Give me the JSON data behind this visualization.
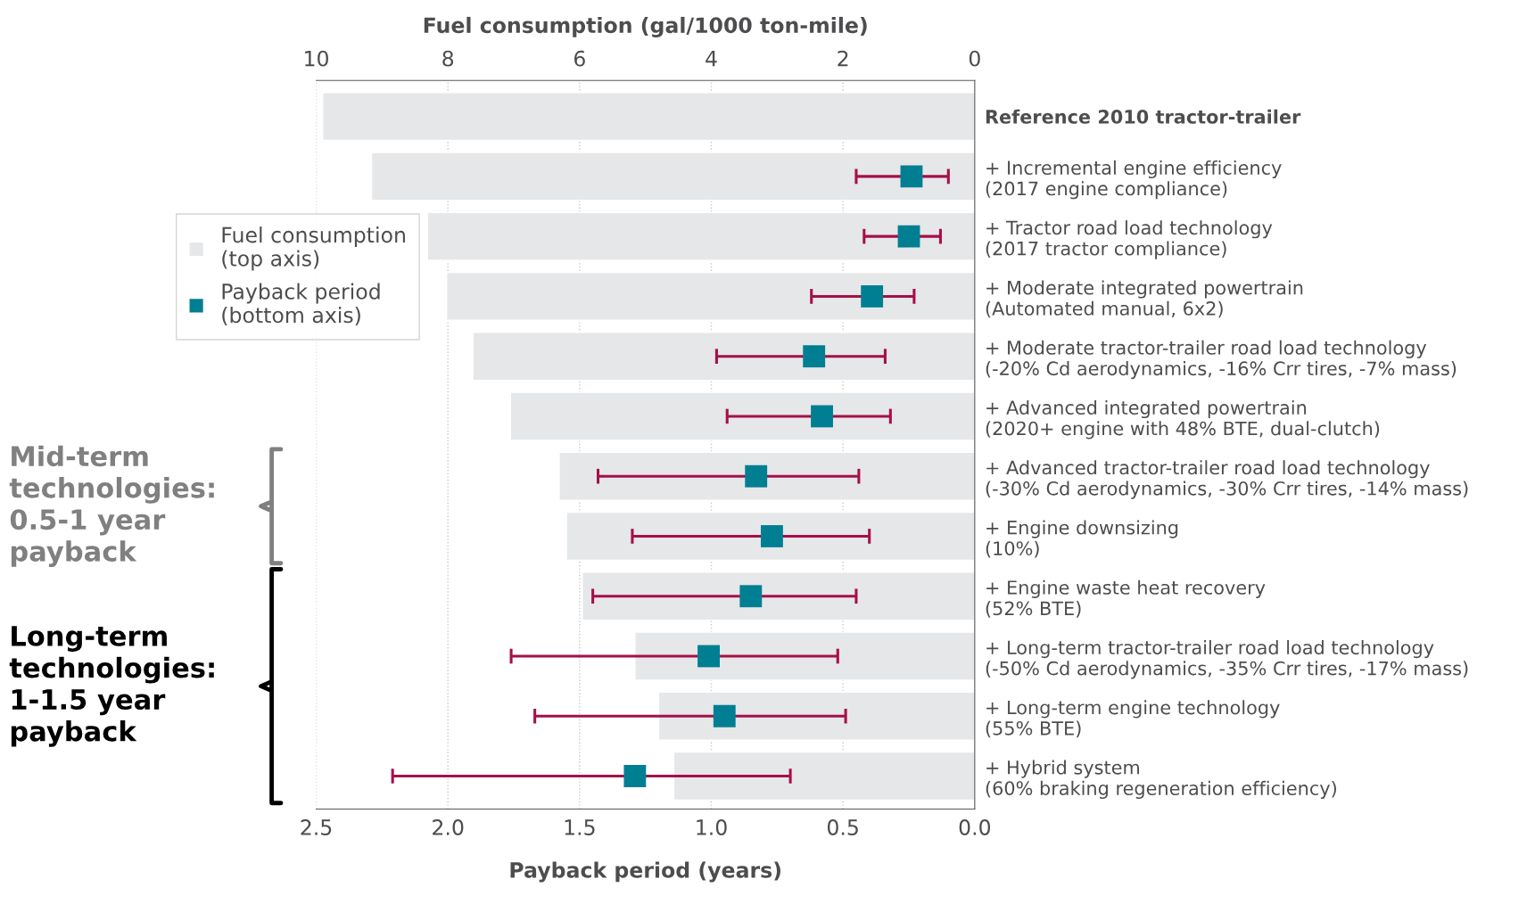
{
  "chart_data": {
    "type": "bar",
    "orientation": "horizontal",
    "xlabel": "Payback period (years)",
    "x2label": "Fuel consumption (gal/1000 ton-mile)",
    "categories": [
      "Reference 2010 tractor-trailer",
      "+ Incremental engine efficiency\n(2017 engine compliance)",
      "+ Tractor road load technology\n(2017 tractor compliance)",
      "+ Moderate integrated powertrain\n(Automated manual, 6x2)",
      "+ Moderate tractor-trailer road load technology\n(-20% Cd aerodynamics, -16% Crr tires, -7% mass)",
      "+ Advanced integrated powertrain\n(2020+ engine with 48% BTE, dual-clutch)",
      "+ Advanced tractor-trailer road load technology\n(-30% Cd aerodynamics, -30% Crr tires, -14% mass)",
      "+ Engine downsizing\n(10%)",
      "+ Engine waste heat recovery\n(52% BTE)",
      "+ Long-term tractor-trailer road load technology\n(-50% Cd aerodynamics, -35% Crr tires, -17% mass)",
      "+ Long-term engine technology\n(55% BTE)",
      "+ Hybrid system\n(60% braking regeneration efficiency)"
    ],
    "series": [
      {
        "name": "Fuel consumption\n(top axis)",
        "type": "bar",
        "axis": "x2",
        "color": "#e6e7e8",
        "values": [
          9.9,
          9.16,
          8.31,
          8.02,
          7.62,
          7.05,
          6.31,
          6.2,
          5.96,
          5.16,
          4.8,
          4.57
        ]
      },
      {
        "name": "Payback period\n(bottom axis)",
        "type": "scatter",
        "marker": "square",
        "color": "#007f92",
        "values": [
          null,
          0.24,
          0.25,
          0.39,
          0.61,
          0.58,
          0.83,
          0.77,
          0.85,
          1.01,
          0.95,
          1.29
        ],
        "errors": [
          null,
          [
            0.1,
            0.45
          ],
          [
            0.13,
            0.42
          ],
          [
            0.23,
            0.62
          ],
          [
            0.34,
            0.98
          ],
          [
            0.32,
            0.94
          ],
          [
            0.44,
            1.43
          ],
          [
            0.4,
            1.3
          ],
          [
            0.45,
            1.45
          ],
          [
            0.52,
            1.76
          ],
          [
            0.49,
            1.67
          ],
          [
            0.7,
            2.21
          ]
        ]
      }
    ],
    "xlim": [
      2.5,
      0
    ],
    "xticks": [
      {
        "value": 2.5,
        "label": "2.5"
      },
      {
        "value": 2.0,
        "label": "2.0"
      },
      {
        "value": 1.5,
        "label": "1.5"
      },
      {
        "value": 1.0,
        "label": "1.0"
      },
      {
        "value": 0.5,
        "label": "0.5"
      },
      {
        "value": 0.0,
        "label": "0.0"
      }
    ],
    "x2lim": [
      10,
      0
    ],
    "x2ticks": [
      10,
      8,
      6,
      4,
      2,
      0
    ],
    "grid": "x",
    "legend": "top left",
    "annotations": [
      "Mid-term technologies: 0.5-1 year payback",
      "Long-term technologies: 1-1.5 year payback"
    ]
  }
}
